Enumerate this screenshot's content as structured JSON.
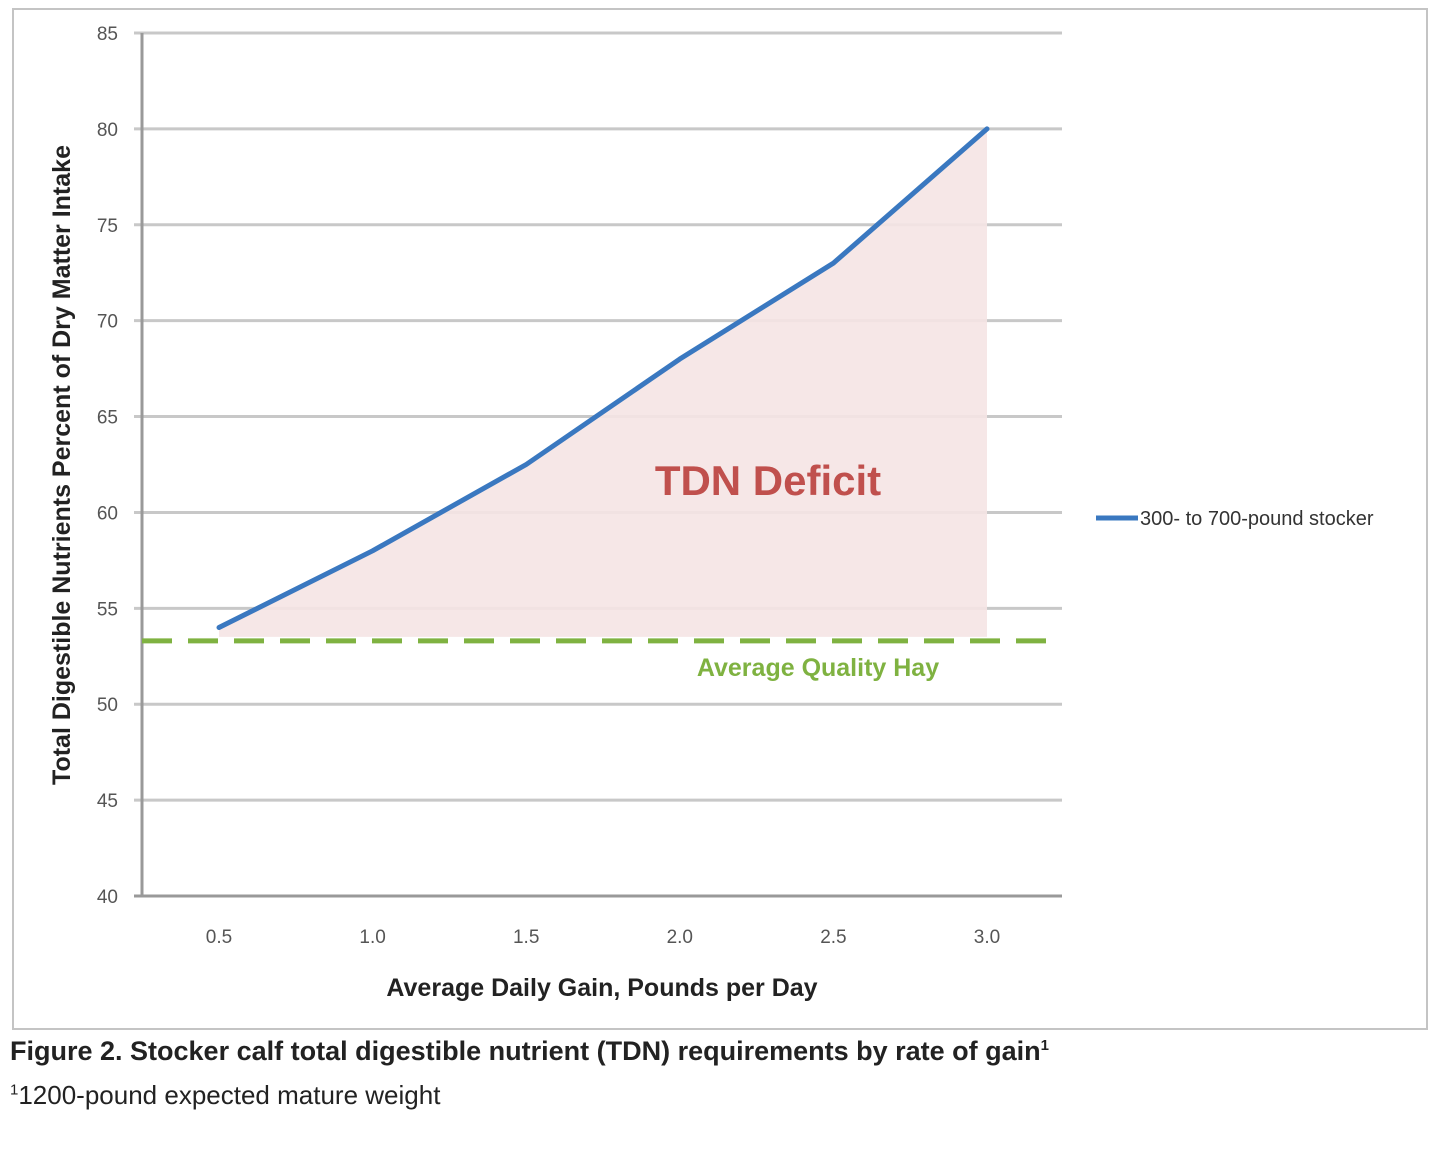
{
  "chart_data": {
    "type": "line",
    "title": "",
    "xlabel": "Average Daily Gain, Pounds per Day",
    "ylabel": "Total Digestible Nutrients Percent of Dry Matter Intake",
    "x": [
      0.5,
      1.0,
      1.5,
      2.0,
      2.5,
      3.0
    ],
    "x_tick_labels": [
      "0.5",
      "1.0",
      "1.5",
      "2.0",
      "2.5",
      "3.0"
    ],
    "y_ticks": [
      40,
      45,
      50,
      55,
      60,
      65,
      70,
      75,
      80,
      85
    ],
    "ylim": [
      40,
      85
    ],
    "grid": true,
    "legend_position": "right",
    "series": [
      {
        "name": "300- to 700-pound stocker",
        "color": "#3a78c0",
        "values": [
          54,
          58,
          62.5,
          68,
          73,
          80
        ]
      }
    ],
    "reference_lines": [
      {
        "label": "Average Quality Hay",
        "y": 53.3,
        "style": "dashed",
        "color": "#7fb241"
      }
    ],
    "annotations": [
      {
        "text": "TDN Deficit",
        "color": "#c0504d",
        "shaded_area_color": "#f5e4e4"
      }
    ]
  },
  "figure": {
    "caption": "Figure 2. Stocker calf total digestible nutrient (TDN) requirements by rate of gain",
    "caption_sup": "1",
    "footnote_sup": "1",
    "footnote": "1200-pound expected mature weight"
  }
}
